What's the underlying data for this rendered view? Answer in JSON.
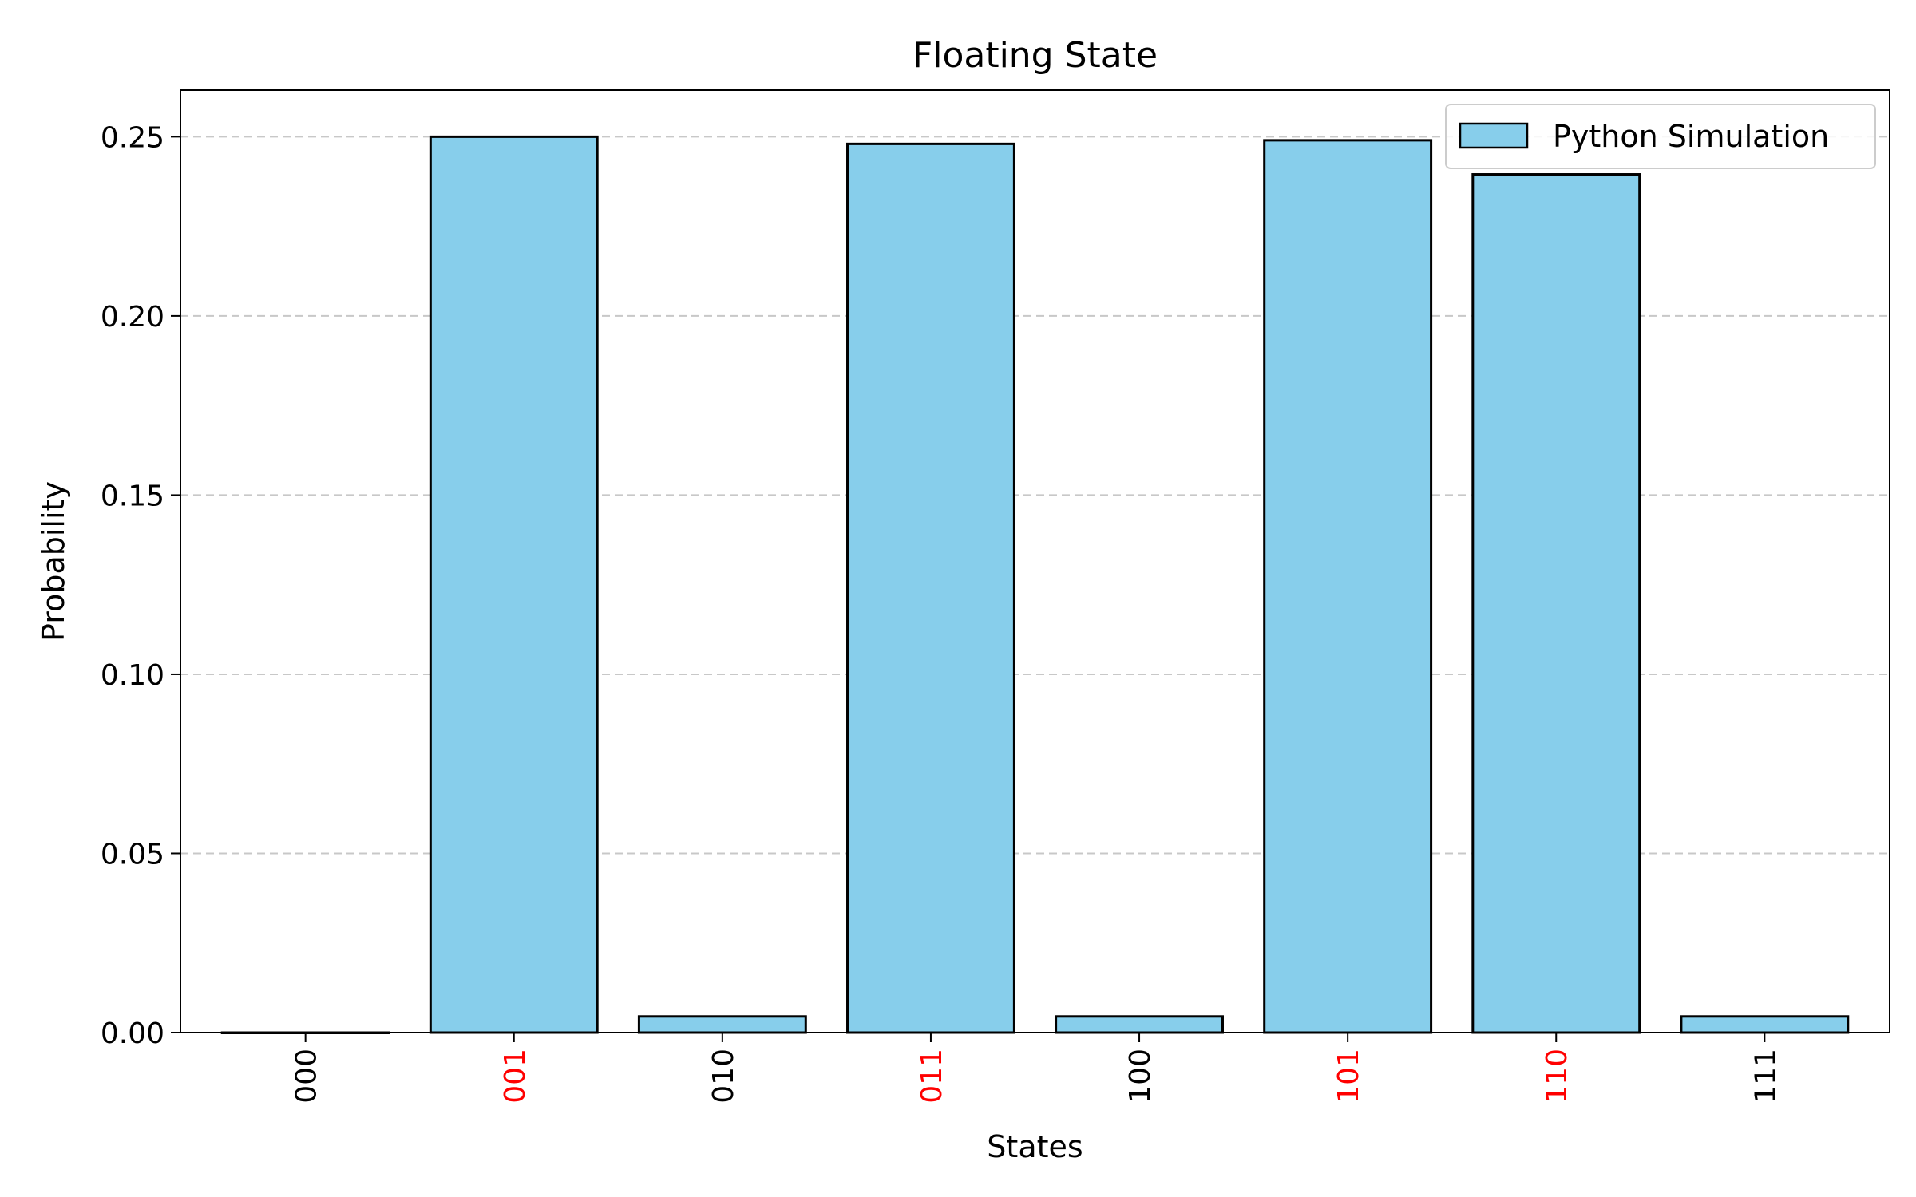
{
  "chart_data": {
    "type": "bar",
    "title": "Floating State",
    "xlabel": "States",
    "ylabel": "Probability",
    "categories": [
      "000",
      "001",
      "010",
      "011",
      "100",
      "101",
      "110",
      "111"
    ],
    "highlighted_categories": [
      "001",
      "011",
      "101",
      "110"
    ],
    "series": [
      {
        "name": "Python Simulation",
        "values": [
          0.0,
          0.25,
          0.0045,
          0.248,
          0.0045,
          0.249,
          0.2395,
          0.0045
        ]
      }
    ],
    "ylim": [
      0,
      0.263
    ],
    "yticks": [
      "0.00",
      "0.05",
      "0.10",
      "0.15",
      "0.20",
      "0.25"
    ],
    "ytick_values": [
      0,
      0.05,
      0.1,
      0.15,
      0.2,
      0.25
    ],
    "grid": "y-dashed",
    "legend_position": "upper right",
    "colors": {
      "bar_fill": "#87ceeb",
      "bar_edge": "#000000",
      "highlight_tick": "#ff0000",
      "normal_tick": "#000000",
      "grid": "#c8c8c8"
    }
  }
}
